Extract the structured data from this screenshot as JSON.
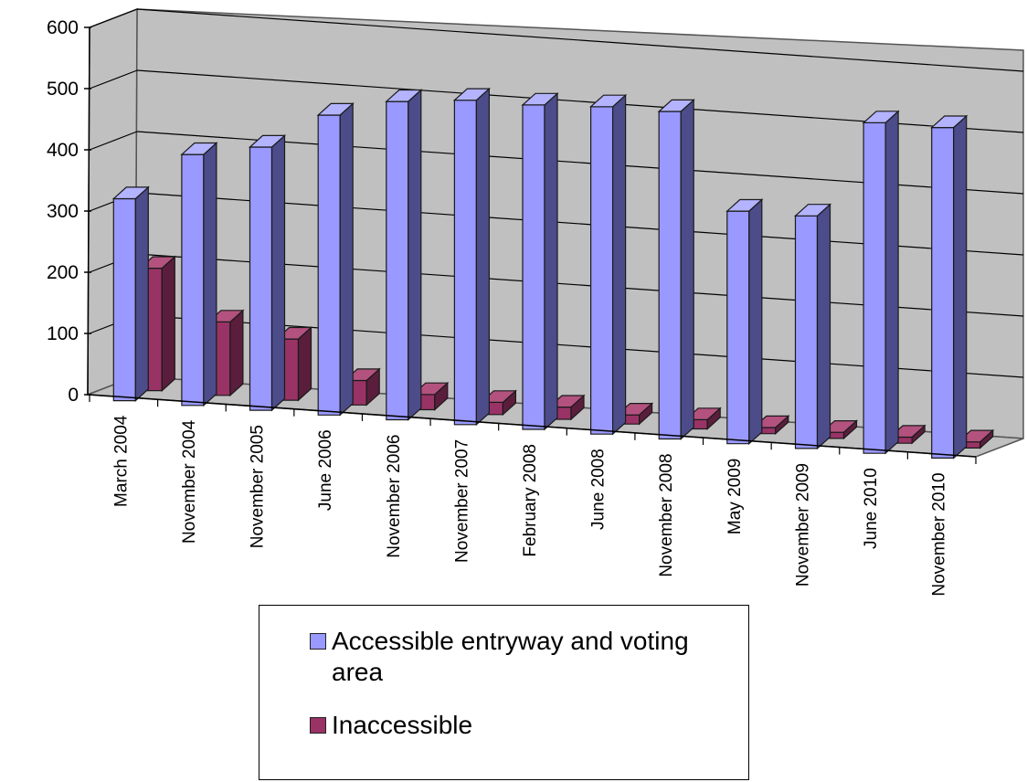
{
  "chart_data": {
    "type": "bar",
    "title": "",
    "xlabel": "",
    "ylabel": "",
    "ylim": [
      0,
      600
    ],
    "yticks": [
      0,
      100,
      200,
      300,
      400,
      500,
      600
    ],
    "categories": [
      "March 2004",
      "November 2004",
      "November 2005",
      "June 2006",
      "November 2006",
      "November 2007",
      "February 2008",
      "June 2008",
      "November 2008",
      "May 2009",
      "November 2009",
      "June 2010",
      "November 2010"
    ],
    "series": [
      {
        "name": "Accessible entryway and voting area",
        "color": "#9999ff",
        "values": [
          330,
          410,
          430,
          490,
          520,
          530,
          530,
          535,
          535,
          380,
          380,
          540,
          540
        ]
      },
      {
        "name": "Inaccessible",
        "color": "#993366",
        "values": [
          200,
          120,
          100,
          40,
          25,
          20,
          20,
          15,
          15,
          10,
          10,
          10,
          10
        ]
      }
    ],
    "grid": true,
    "legend_position": "bottom"
  }
}
